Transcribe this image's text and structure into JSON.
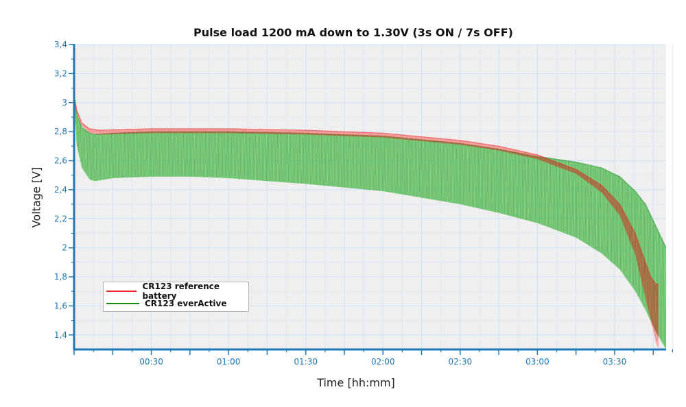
{
  "chart_data": {
    "type": "area",
    "title": "Pulse load 1200 mA down to 1.30V (3s ON / 7s OFF)",
    "xlabel": "Time [hh:mm]",
    "ylabel": "Voltage [V]",
    "x_unit": "minutes",
    "xlim": [
      0,
      230
    ],
    "ylim": [
      1.3,
      3.4
    ],
    "x_ticks": [
      0,
      15,
      30,
      45,
      60,
      75,
      90,
      105,
      120,
      135,
      150,
      165,
      180,
      195,
      210,
      225
    ],
    "x_tick_labels": [
      {
        "x": 30,
        "label": "00:30"
      },
      {
        "x": 60,
        "label": "01:00"
      },
      {
        "x": 90,
        "label": "01:30"
      },
      {
        "x": 120,
        "label": "02:00"
      },
      {
        "x": 150,
        "label": "02:30"
      },
      {
        "x": 180,
        "label": "03:00"
      },
      {
        "x": 210,
        "label": "03:30"
      }
    ],
    "y_ticks": [
      {
        "y": 1.4,
        "label": "1,4"
      },
      {
        "y": 1.6,
        "label": "1,6"
      },
      {
        "y": 1.8,
        "label": "1,8"
      },
      {
        "y": 2.0,
        "label": "2"
      },
      {
        "y": 2.2,
        "label": "2,2"
      },
      {
        "y": 2.4,
        "label": "2,4"
      },
      {
        "y": 2.6,
        "label": "2,6"
      },
      {
        "y": 2.8,
        "label": "2,8"
      },
      {
        "y": 3.0,
        "label": "3"
      },
      {
        "y": 3.2,
        "label": "3,2"
      },
      {
        "y": 3.4,
        "label": "3,4"
      }
    ],
    "grid": true,
    "legend_position": "bottom-left",
    "series": [
      {
        "name": "CR123 reference battery",
        "color": "#ee2222",
        "fill": "#ff6a6a",
        "x": [
          0,
          1,
          3,
          6,
          10,
          30,
          45,
          60,
          90,
          120,
          150,
          165,
          180,
          195,
          205,
          212,
          218,
          222,
          224,
          226,
          227
        ],
        "upper": [
          3.05,
          2.95,
          2.86,
          2.82,
          2.81,
          2.82,
          2.82,
          2.82,
          2.81,
          2.79,
          2.74,
          2.7,
          2.64,
          2.54,
          2.43,
          2.3,
          2.1,
          1.9,
          1.8,
          1.75,
          1.75
        ],
        "lower": [
          3.02,
          2.92,
          2.84,
          2.79,
          2.78,
          2.79,
          2.79,
          2.79,
          2.78,
          2.76,
          2.71,
          2.67,
          2.61,
          2.51,
          2.38,
          2.22,
          1.95,
          1.65,
          1.5,
          1.35,
          1.3
        ]
      },
      {
        "name": "CR123 everActive",
        "color": "#118811",
        "fill": "#4ebf4e",
        "x": [
          0,
          1,
          3,
          6,
          8,
          15,
          30,
          45,
          60,
          90,
          120,
          150,
          165,
          180,
          195,
          205,
          212,
          218,
          222,
          226,
          230
        ],
        "upper": [
          3.05,
          2.92,
          2.83,
          2.79,
          2.78,
          2.79,
          2.8,
          2.8,
          2.8,
          2.79,
          2.77,
          2.72,
          2.68,
          2.63,
          2.59,
          2.55,
          2.49,
          2.39,
          2.3,
          2.15,
          2.0
        ],
        "lower": [
          3.0,
          2.7,
          2.55,
          2.47,
          2.46,
          2.48,
          2.49,
          2.49,
          2.48,
          2.44,
          2.39,
          2.3,
          2.24,
          2.17,
          2.07,
          1.96,
          1.85,
          1.7,
          1.57,
          1.42,
          1.3
        ]
      }
    ]
  }
}
